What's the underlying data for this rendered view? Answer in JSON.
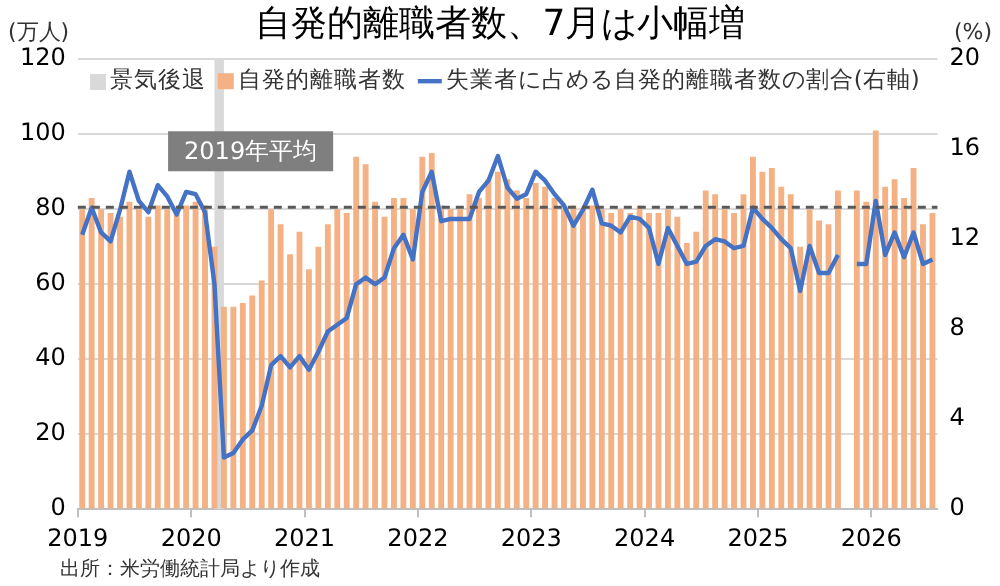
{
  "chart_data": {
    "type": "bar",
    "title": "自発的離職者数、7月は小幅増",
    "ylabel": "(万人)",
    "y2label": "(%)",
    "x": [
      "2019-01-15",
      "2019-02-15",
      "2019-03-15",
      "2019-04-15",
      "2019-05-15",
      "2019-06-15",
      "2019-07-15",
      "2019-08-15",
      "2019-09-15",
      "2019-10-15",
      "2019-11-15",
      "2019-12-15",
      "2020-01-15",
      "2020-02-15",
      "2020-03-15",
      "2020-04-15",
      "2020-05-15",
      "2020-06-15",
      "2020-07-15",
      "2020-08-15",
      "2020-09-15",
      "2020-10-15",
      "2020-11-15",
      "2020-12-15",
      "2021-01-15",
      "2021-02-15",
      "2021-03-15",
      "2021-04-15",
      "2021-05-15",
      "2021-06-15",
      "2021-07-15",
      "2021-08-15",
      "2021-09-15",
      "2021-10-15",
      "2021-11-15",
      "2021-12-15",
      "2022-01-15",
      "2022-02-15",
      "2022-03-15",
      "2022-04-15",
      "2022-05-15",
      "2022-06-15",
      "2022-07-15",
      "2022-08-15",
      "2022-09-15",
      "2022-10-15",
      "2022-11-15",
      "2022-12-15",
      "2023-01-15",
      "2023-02-15",
      "2023-03-15",
      "2023-04-15",
      "2023-05-15",
      "2023-06-15",
      "2023-07-15",
      "2023-08-15",
      "2023-09-15",
      "2023-10-15",
      "2023-11-15",
      "2023-12-15",
      "2024-01-15",
      "2024-02-15",
      "2024-03-15",
      "2024-04-15",
      "2024-05-15",
      "2024-06-15",
      "2024-07-15",
      "2024-08-15",
      "2024-09-15",
      "2024-10-15",
      "2024-11-15",
      "2024-12-15",
      "2025-01-15",
      "2025-02-15",
      "2025-03-15",
      "2025-04-15",
      "2025-05-15",
      "2025-06-15",
      "2025-07-15",
      "2025-08-15",
      "2025-09-15",
      "2025-10-15",
      "2025-11-15",
      "2025-12-15",
      "2026-01-15",
      "2026-02-15",
      "2026-03-15",
      "2026-04-15",
      "2026-05-15",
      "2026-06-15",
      "2026-07-15"
    ],
    "series": [
      {
        "name": "自発的離職者数",
        "color": "#f4b183",
        "values": [
          80,
          83,
          80,
          79,
          78,
          82,
          80,
          78,
          81,
          80,
          79,
          81,
          82,
          81,
          70,
          54,
          54,
          55,
          57,
          61,
          80,
          76,
          68,
          74,
          64,
          70,
          76,
          80,
          79,
          94,
          92,
          82,
          78,
          83,
          83,
          80,
          94,
          95,
          81,
          80,
          80,
          84,
          83,
          88,
          90,
          88,
          85,
          83,
          87,
          86,
          83,
          80,
          81,
          80,
          81,
          80,
          79,
          80,
          79,
          81,
          79,
          79,
          80,
          78,
          71,
          74,
          85,
          84,
          80,
          79,
          84,
          94,
          90,
          91,
          86,
          84,
          70,
          80,
          77,
          76,
          85,
          null,
          85,
          82,
          101,
          86,
          88,
          83,
          91,
          76,
          79
        ]
      },
      {
        "name": "失業者に占める自発的離職者数の割合(右軸)",
        "type": "line",
        "axis": "y2",
        "color": "#4472c4",
        "values": [
          12.2,
          13.4,
          12.3,
          11.9,
          13.3,
          15.0,
          13.7,
          13.2,
          14.4,
          13.9,
          13.1,
          14.1,
          14.0,
          13.2,
          10.0,
          2.3,
          2.5,
          3.1,
          3.5,
          4.6,
          6.4,
          6.8,
          6.3,
          6.8,
          6.2,
          7.0,
          7.9,
          8.2,
          8.5,
          10.0,
          10.3,
          10.0,
          10.3,
          11.6,
          12.2,
          11.1,
          14.1,
          15.0,
          12.8,
          12.9,
          12.9,
          12.9,
          14.1,
          14.6,
          15.7,
          14.3,
          13.8,
          14.0,
          15.0,
          14.6,
          14.0,
          13.5,
          12.6,
          13.3,
          14.2,
          12.7,
          12.6,
          12.3,
          13.0,
          12.9,
          12.5,
          10.9,
          12.5,
          11.7,
          10.9,
          11.0,
          11.7,
          12.0,
          11.9,
          11.6,
          11.7,
          13.4,
          12.9,
          12.5,
          12.0,
          11.6,
          9.7,
          11.7,
          10.5,
          10.5,
          11.3,
          null,
          10.9,
          10.9,
          13.7,
          11.3,
          12.3,
          11.2,
          12.3,
          10.9,
          11.1
        ]
      }
    ],
    "xlim": [
      "2019-01-01",
      "2026-08-01"
    ],
    "xticks": [
      {
        "value": "2019",
        "label": "2019"
      },
      {
        "value": "2020",
        "label": "2020"
      },
      {
        "value": "2021",
        "label": "2021"
      },
      {
        "value": "2022",
        "label": "2022"
      },
      {
        "value": "2023",
        "label": "2023"
      },
      {
        "value": "2024",
        "label": "2024"
      },
      {
        "value": "2025",
        "label": "2025"
      },
      {
        "value": "2026",
        "label": "2026"
      }
    ],
    "ylim": [
      0,
      120
    ],
    "yticks": [
      0,
      20,
      40,
      60,
      80,
      100,
      120
    ],
    "y2lim": [
      0,
      20
    ],
    "y2ticks": [
      0,
      4,
      8,
      12,
      16,
      20
    ],
    "ref_lines": [
      {
        "axis": "y",
        "value": 80.5,
        "label": "2019年平均",
        "color": "#595959",
        "line_style": "dashed"
      }
    ],
    "bands": [
      {
        "axis": "x",
        "from": "2020-03-15",
        "to": "2020-04-15",
        "label": "景気後退",
        "color": "#d9d9d9"
      }
    ],
    "grid": "y",
    "legend": "top",
    "annotations": [
      "出所：米労働統計局より作成"
    ]
  }
}
